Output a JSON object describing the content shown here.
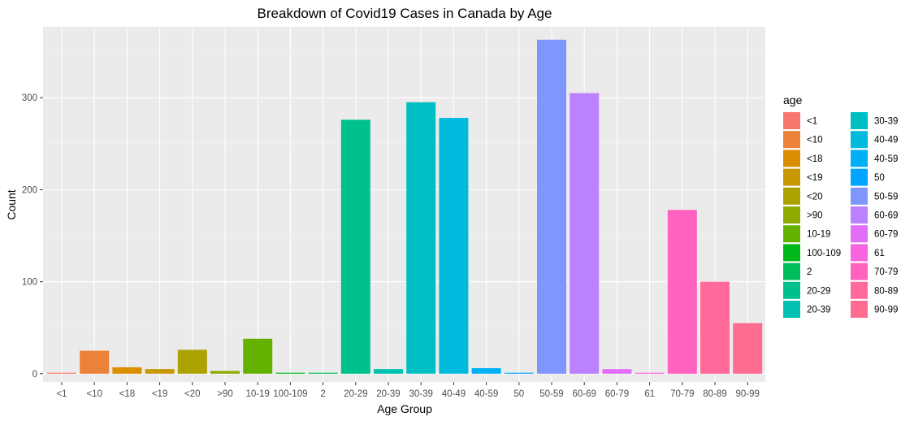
{
  "chart_data": {
    "type": "bar",
    "title": "Breakdown of Covid19 Cases in Canada by Age",
    "xlabel": "Age Group",
    "ylabel": "Count",
    "ylim": [
      -9,
      377
    ],
    "yticks": [
      0,
      100,
      200,
      300
    ],
    "grid": true,
    "legend_position": "right",
    "legend_title": "age",
    "categories": [
      "<1",
      "<10",
      "<18",
      "<19",
      "<20",
      ">90",
      "10-19",
      "100-109",
      "2",
      "20-29",
      "20-39",
      "30-39",
      "40-49",
      "40-59",
      "50",
      "50-59",
      "60-69",
      "60-79",
      "61",
      "70-79",
      "80-89",
      "90-99"
    ],
    "values": [
      1,
      25,
      7,
      5,
      26,
      3,
      38,
      1,
      1,
      276,
      5,
      295,
      278,
      6,
      1,
      363,
      305,
      5,
      1,
      178,
      100,
      55
    ],
    "colors": [
      "#F8766D",
      "#EC8239",
      "#DB8E00",
      "#C79800",
      "#AEA200",
      "#8FAA00",
      "#64B200",
      "#00B81B",
      "#00BD5C",
      "#00C08D",
      "#00C1B2",
      "#00BFC4",
      "#00BADE",
      "#00B0F6",
      "#00A5FF",
      "#7F96FF",
      "#BC81FF",
      "#E26EF7",
      "#F863DF",
      "#FF62BF",
      "#FF6A9A",
      "#FF6C91"
    ]
  }
}
